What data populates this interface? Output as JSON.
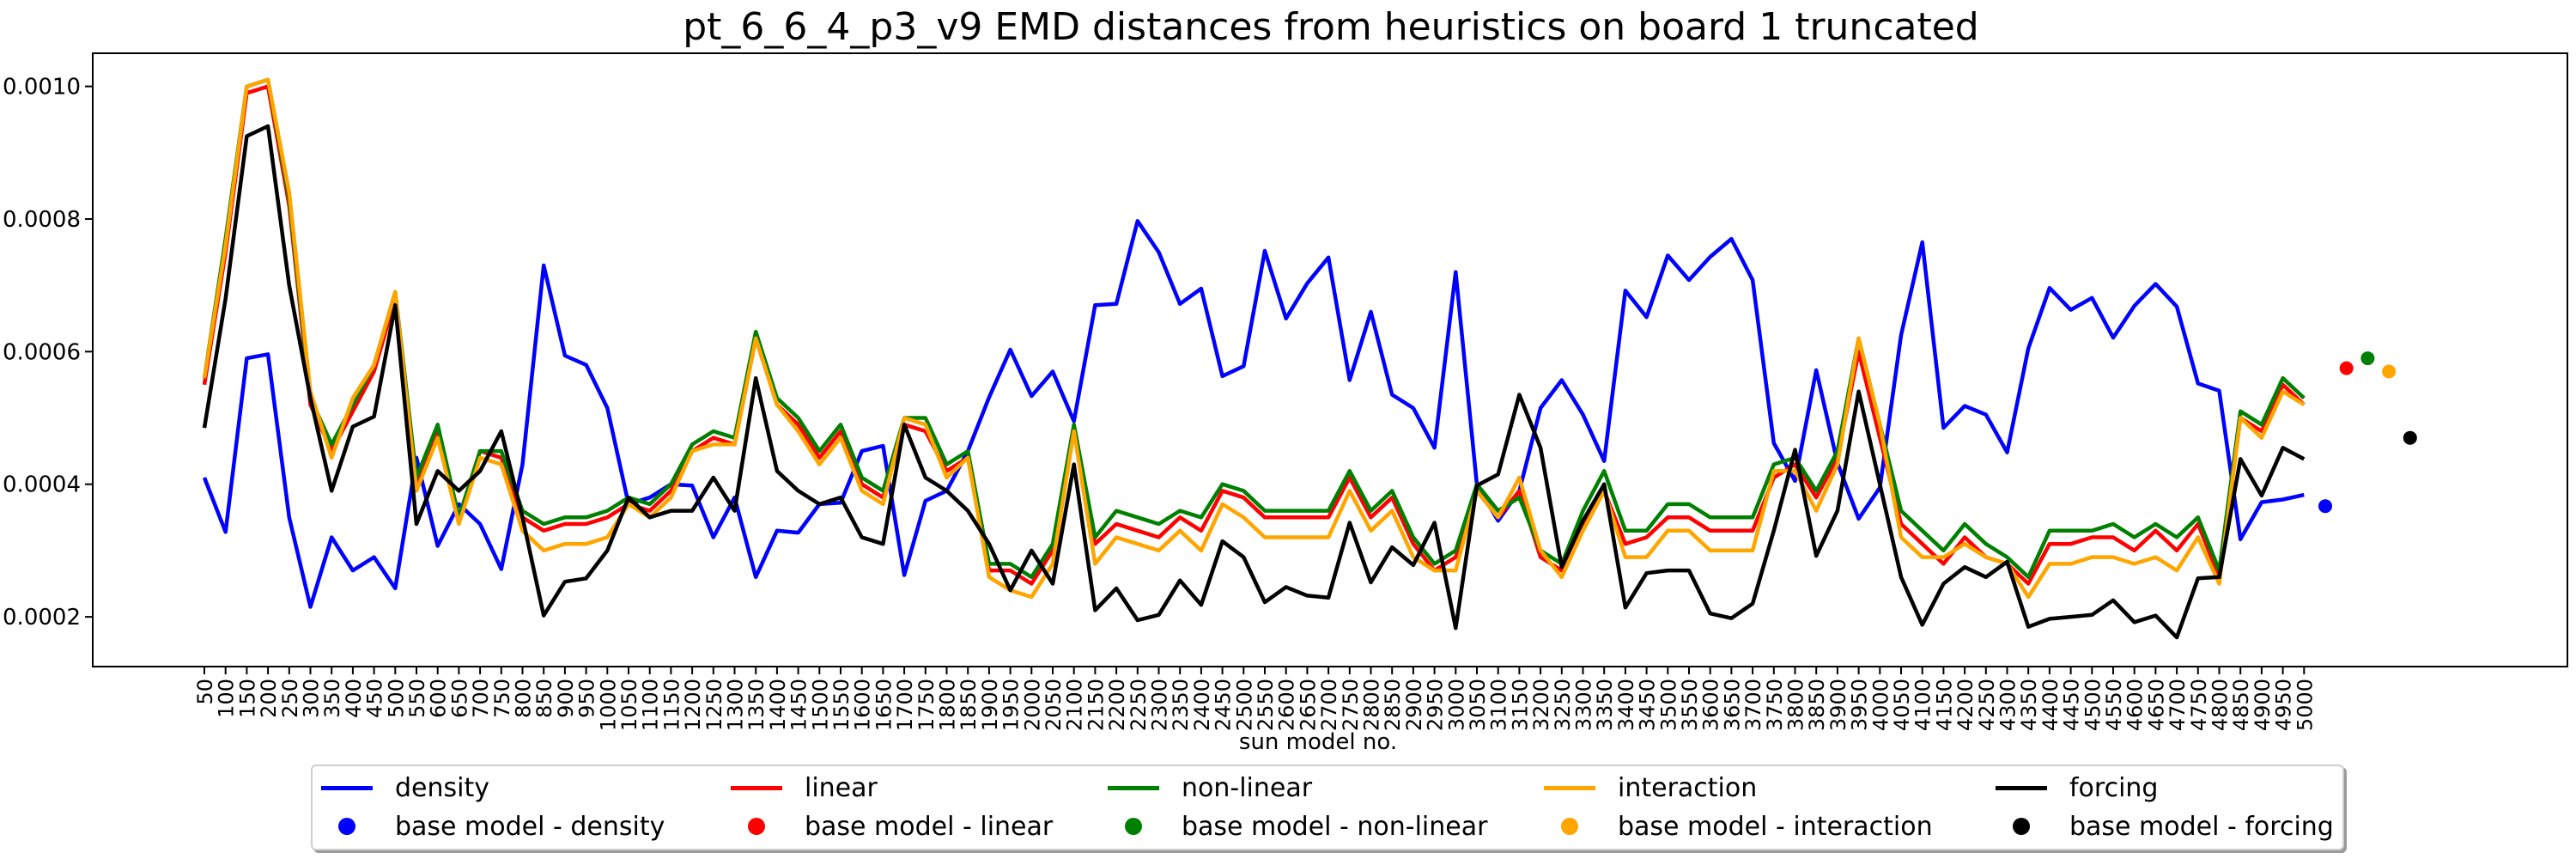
{
  "chart_data": {
    "type": "line",
    "title": "pt_6_6_4_p3_v9 EMD distances from heuristics on board 1 truncated",
    "xlabel": "sun model no.",
    "ylabel": "",
    "ylim": [
      0.000125,
      0.00105
    ],
    "yticks": [
      0.0002,
      0.0004,
      0.0006,
      0.0008,
      0.001
    ],
    "ytick_labels": [
      "0.0002",
      "0.0004",
      "0.0006",
      "0.0008",
      "0.0010"
    ],
    "grid": false,
    "legend_position": "bottom",
    "categories": [
      "50",
      "100",
      "150",
      "200",
      "250",
      "300",
      "350",
      "400",
      "450",
      "500",
      "550",
      "600",
      "650",
      "700",
      "750",
      "800",
      "850",
      "900",
      "950",
      "1000",
      "1050",
      "1100",
      "1150",
      "1200",
      "1250",
      "1300",
      "1350",
      "1400",
      "1450",
      "1500",
      "1550",
      "1600",
      "1650",
      "1700",
      "1750",
      "1800",
      "1850",
      "1900",
      "1950",
      "2000",
      "2050",
      "2100",
      "2150",
      "2200",
      "2250",
      "2300",
      "2350",
      "2400",
      "2450",
      "2500",
      "2550",
      "2600",
      "2650",
      "2700",
      "2750",
      "2800",
      "2850",
      "2900",
      "2950",
      "3000",
      "3050",
      "3100",
      "3150",
      "3200",
      "3250",
      "3300",
      "3350",
      "3400",
      "3450",
      "3500",
      "3550",
      "3600",
      "3650",
      "3700",
      "3750",
      "3800",
      "3850",
      "3900",
      "3950",
      "4000",
      "4050",
      "4100",
      "4150",
      "4200",
      "4250",
      "4300",
      "4350",
      "4400",
      "4450",
      "4500",
      "4550",
      "4600",
      "4650",
      "4700",
      "4750",
      "4800",
      "4850",
      "4900",
      "4950",
      "5000"
    ],
    "series": [
      {
        "name": "density",
        "color": "#0000ff",
        "values": [
          0.00041,
          0.000328,
          0.00059,
          0.000596,
          0.00035,
          0.000215,
          0.00032,
          0.00027,
          0.00029,
          0.000243,
          0.00044,
          0.000307,
          0.00037,
          0.00034,
          0.000272,
          0.00043,
          0.00073,
          0.000594,
          0.00058,
          0.000515,
          0.00037,
          0.00038,
          0.0004,
          0.000398,
          0.00032,
          0.00038,
          0.00026,
          0.00033,
          0.000327,
          0.00037,
          0.000372,
          0.00045,
          0.000458,
          0.000263,
          0.000375,
          0.00039,
          0.00045,
          0.000531,
          0.000603,
          0.000533,
          0.00057,
          0.000495,
          0.00067,
          0.000672,
          0.000797,
          0.00075,
          0.000672,
          0.000695,
          0.000563,
          0.000578,
          0.000752,
          0.00065,
          0.000703,
          0.000742,
          0.000557,
          0.00066,
          0.000535,
          0.000515,
          0.000455,
          0.00072,
          0.000399,
          0.000345,
          0.00039,
          0.000515,
          0.000557,
          0.000505,
          0.000435,
          0.000692,
          0.000652,
          0.000745,
          0.000708,
          0.000743,
          0.00077,
          0.000708,
          0.000462,
          0.000405,
          0.000572,
          0.000432,
          0.000348,
          0.000395,
          0.000625,
          0.000765,
          0.000485,
          0.000518,
          0.000505,
          0.000448,
          0.000605,
          0.000696,
          0.000663,
          0.000681,
          0.000621,
          0.000669,
          0.000702,
          0.000668,
          0.000552,
          0.000541,
          0.000317,
          0.000373,
          0.000377,
          0.000384
        ]
      },
      {
        "name": "linear",
        "color": "#ff0000",
        "values": [
          0.00055,
          0.00075,
          0.00099,
          0.001,
          0.00082,
          0.00052,
          0.00045,
          0.00051,
          0.00057,
          0.00068,
          0.0004,
          0.00048,
          0.00035,
          0.00045,
          0.00044,
          0.00035,
          0.00033,
          0.00034,
          0.00034,
          0.00035,
          0.00037,
          0.00036,
          0.00039,
          0.00045,
          0.00047,
          0.00046,
          0.00062,
          0.00052,
          0.00049,
          0.00044,
          0.00048,
          0.0004,
          0.00038,
          0.00049,
          0.00048,
          0.00042,
          0.00044,
          0.00027,
          0.00027,
          0.00025,
          0.0003,
          0.00048,
          0.00031,
          0.00034,
          0.00033,
          0.00032,
          0.00035,
          0.00033,
          0.00039,
          0.00038,
          0.00035,
          0.00035,
          0.00035,
          0.00035,
          0.00041,
          0.00035,
          0.00038,
          0.00031,
          0.00027,
          0.00029,
          0.00039,
          0.00035,
          0.00039,
          0.00029,
          0.00027,
          0.00034,
          0.00039,
          0.00031,
          0.00032,
          0.00035,
          0.00035,
          0.00033,
          0.00033,
          0.00033,
          0.00041,
          0.00043,
          0.00038,
          0.00044,
          0.0006,
          0.00047,
          0.00034,
          0.00031,
          0.00028,
          0.00032,
          0.00029,
          0.00028,
          0.00025,
          0.00031,
          0.00031,
          0.00032,
          0.00032,
          0.0003,
          0.00033,
          0.0003,
          0.00034,
          0.00026,
          0.0005,
          0.00048,
          0.00055,
          0.00052
        ]
      },
      {
        "name": "non-linear",
        "color": "#008000",
        "values": [
          0.00056,
          0.00077,
          0.001,
          0.00101,
          0.00083,
          0.00053,
          0.00046,
          0.00052,
          0.00058,
          0.00069,
          0.00041,
          0.00049,
          0.00035,
          0.00045,
          0.00045,
          0.00036,
          0.00034,
          0.00035,
          0.00035,
          0.00036,
          0.00038,
          0.00037,
          0.0004,
          0.00046,
          0.00048,
          0.00047,
          0.00063,
          0.00053,
          0.0005,
          0.00045,
          0.00049,
          0.00041,
          0.00039,
          0.0005,
          0.0005,
          0.00043,
          0.00045,
          0.00028,
          0.00028,
          0.00026,
          0.00031,
          0.00049,
          0.00032,
          0.00036,
          0.00035,
          0.00034,
          0.00036,
          0.00035,
          0.0004,
          0.00039,
          0.00036,
          0.00036,
          0.00036,
          0.00036,
          0.00042,
          0.00036,
          0.00039,
          0.00032,
          0.00028,
          0.0003,
          0.0004,
          0.00036,
          0.00038,
          0.0003,
          0.00028,
          0.00036,
          0.00042,
          0.00033,
          0.00033,
          0.00037,
          0.00037,
          0.00035,
          0.00035,
          0.00035,
          0.00043,
          0.00044,
          0.00039,
          0.00045,
          0.00062,
          0.00049,
          0.00036,
          0.00033,
          0.0003,
          0.00034,
          0.00031,
          0.00029,
          0.00026,
          0.00033,
          0.00033,
          0.00033,
          0.00034,
          0.00032,
          0.00034,
          0.00032,
          0.00035,
          0.00027,
          0.00051,
          0.00049,
          0.00056,
          0.00053
        ]
      },
      {
        "name": "interaction",
        "color": "#ffa500",
        "values": [
          0.00056,
          0.00076,
          0.001,
          0.00101,
          0.00084,
          0.00054,
          0.00044,
          0.00053,
          0.00058,
          0.00069,
          0.00039,
          0.00047,
          0.00034,
          0.00044,
          0.00043,
          0.00033,
          0.0003,
          0.00031,
          0.00031,
          0.00032,
          0.00037,
          0.00035,
          0.00038,
          0.00045,
          0.00046,
          0.00046,
          0.00062,
          0.00052,
          0.00048,
          0.00043,
          0.00047,
          0.00039,
          0.00037,
          0.0005,
          0.00049,
          0.00041,
          0.00044,
          0.00026,
          0.00024,
          0.00023,
          0.00028,
          0.00048,
          0.00028,
          0.00032,
          0.00031,
          0.0003,
          0.00033,
          0.0003,
          0.00037,
          0.00035,
          0.00032,
          0.00032,
          0.00032,
          0.00032,
          0.00039,
          0.00033,
          0.00036,
          0.00029,
          0.00027,
          0.00027,
          0.00039,
          0.00035,
          0.00041,
          0.0003,
          0.00026,
          0.00033,
          0.00039,
          0.00029,
          0.00029,
          0.00033,
          0.00033,
          0.0003,
          0.0003,
          0.0003,
          0.00042,
          0.00042,
          0.00036,
          0.00043,
          0.00062,
          0.00049,
          0.00032,
          0.00029,
          0.00029,
          0.00031,
          0.00029,
          0.00028,
          0.00023,
          0.00028,
          0.00028,
          0.00029,
          0.00029,
          0.00028,
          0.00029,
          0.00027,
          0.00032,
          0.00025,
          0.0005,
          0.00047,
          0.00054,
          0.00052
        ]
      },
      {
        "name": "forcing",
        "color": "#000000",
        "values": [
          0.000485,
          0.00068,
          0.000925,
          0.00094,
          0.0007,
          0.00053,
          0.00039,
          0.000487,
          0.000502,
          0.00067,
          0.00034,
          0.00042,
          0.00039,
          0.00042,
          0.00048,
          0.00035,
          0.000202,
          0.000253,
          0.000258,
          0.0003,
          0.00038,
          0.00035,
          0.00036,
          0.00036,
          0.00041,
          0.00036,
          0.00056,
          0.00042,
          0.00039,
          0.00037,
          0.00038,
          0.00032,
          0.00031,
          0.00049,
          0.00041,
          0.00039,
          0.00036,
          0.00031,
          0.00024,
          0.0003,
          0.00025,
          0.00043,
          0.00021,
          0.000243,
          0.000195,
          0.000203,
          0.000255,
          0.000218,
          0.000314,
          0.00029,
          0.000222,
          0.000245,
          0.000232,
          0.000229,
          0.000342,
          0.000252,
          0.000305,
          0.000278,
          0.000342,
          0.000183,
          0.000398,
          0.000415,
          0.000535,
          0.000455,
          0.000275,
          0.000345,
          0.0004,
          0.000214,
          0.000266,
          0.00027,
          0.00027,
          0.000205,
          0.000198,
          0.00022,
          0.00033,
          0.000452,
          0.000292,
          0.00036,
          0.00054,
          0.0004,
          0.00026,
          0.000188,
          0.00025,
          0.000275,
          0.00026,
          0.000283,
          0.000185,
          0.000197,
          0.0002,
          0.000203,
          0.000225,
          0.000192,
          0.000202,
          0.000169,
          0.000258,
          0.00026,
          0.000438,
          0.000383,
          0.000455,
          0.000438
        ]
      }
    ],
    "base_models": [
      {
        "name": "base model - density",
        "color": "#0000ff",
        "value": 0.000367,
        "offset": 1
      },
      {
        "name": "base model - linear",
        "color": "#ff0000",
        "value": 0.000575,
        "offset": 2
      },
      {
        "name": "base model - non-linear",
        "color": "#008000",
        "value": 0.00059,
        "offset": 3
      },
      {
        "name": "base model - interaction",
        "color": "#ffa500",
        "value": 0.00057,
        "offset": 4
      },
      {
        "name": "base model - forcing",
        "color": "#000000",
        "value": 0.00047,
        "offset": 5
      }
    ]
  },
  "legend": {
    "row1": [
      "density",
      "linear",
      "non-linear",
      "interaction",
      "forcing"
    ],
    "row2": [
      "base model - density",
      "base model - linear",
      "base model - non-linear",
      "base model - interaction",
      "base model - forcing"
    ],
    "colors": [
      "#0000ff",
      "#ff0000",
      "#008000",
      "#ffa500",
      "#000000"
    ]
  }
}
